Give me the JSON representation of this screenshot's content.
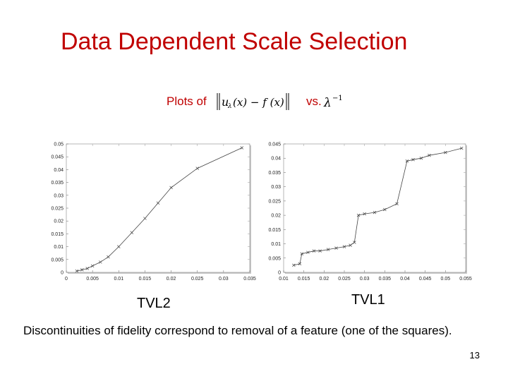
{
  "slide": {
    "title": "Data Dependent Scale Selection",
    "plots_of_label": "Plots of",
    "vs_label": "vs.",
    "left_caption": "TVL2",
    "right_caption": "TVL1",
    "note": "Discontinuities of fidelity correspond to removal of a feature (one of the squares).",
    "slide_number": "13"
  },
  "colors": {
    "title": "#c00000",
    "series": "#444444",
    "plot_shadow": "#c8c8c8"
  },
  "chart_data": [
    {
      "type": "line",
      "xlim": [
        0,
        0.035
      ],
      "ylim": [
        0,
        0.05
      ],
      "xticks": [
        "0",
        "0.005",
        "0.01",
        "0.015",
        "0.02",
        "0.025",
        "0.03",
        "0.035"
      ],
      "yticks": [
        "0",
        "0.005",
        "0.01",
        "0.015",
        "0.02",
        "0.025",
        "0.03",
        "0.035",
        "0.04",
        "0.045",
        "0.05"
      ],
      "series": [
        {
          "x": [
            0.002,
            0.003,
            0.004,
            0.005,
            0.0065,
            0.008,
            0.01,
            0.0125,
            0.015,
            0.0175,
            0.02,
            0.025,
            0.0335
          ],
          "y": [
            0.0005,
            0.001,
            0.0015,
            0.0025,
            0.004,
            0.006,
            0.01,
            0.0155,
            0.021,
            0.027,
            0.033,
            0.0405,
            0.0485
          ]
        }
      ]
    },
    {
      "type": "line",
      "xlim": [
        0.01,
        0.055
      ],
      "ylim": [
        0,
        0.045
      ],
      "xticks": [
        "0.01",
        "0.015",
        "0.02",
        "0.025",
        "0.03",
        "0.035",
        "0.04",
        "0.045",
        "0.05",
        "0.055"
      ],
      "yticks": [
        "0",
        "0.005",
        "0.01",
        "0.015",
        "0.02",
        "0.025",
        "0.03",
        "0.035",
        "0.04",
        "0.045"
      ],
      "series": [
        {
          "x": [
            0.0125,
            0.014,
            0.0145,
            0.016,
            0.0175,
            0.019,
            0.021,
            0.023,
            0.025,
            0.0265,
            0.0275,
            0.0285,
            0.03,
            0.0325,
            0.035,
            0.038,
            0.0405,
            0.042,
            0.044,
            0.046,
            0.05,
            0.054
          ],
          "y": [
            0.0025,
            0.003,
            0.0065,
            0.007,
            0.0075,
            0.0075,
            0.008,
            0.0085,
            0.009,
            0.0095,
            0.0105,
            0.02,
            0.0205,
            0.021,
            0.022,
            0.024,
            0.039,
            0.0395,
            0.04,
            0.041,
            0.042,
            0.0435
          ]
        }
      ]
    }
  ]
}
